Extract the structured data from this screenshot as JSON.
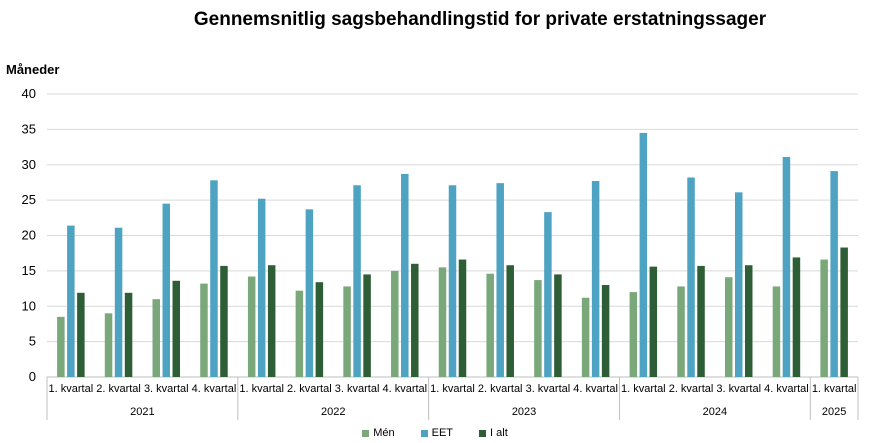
{
  "chart_data": {
    "type": "bar",
    "title": "Gennemsnitlig sagsbehandlingstid for private erstatningssager",
    "ylabel": "Måneder",
    "xlabel": "",
    "ylim": [
      0,
      40
    ],
    "yticks": [
      0,
      5,
      10,
      15,
      20,
      25,
      30,
      35,
      40
    ],
    "grid": true,
    "legend_position": "bottom",
    "categories": [
      "1. kvartal",
      "2. kvartal",
      "3. kvartal",
      "4. kvartal",
      "1. kvartal",
      "2. kvartal",
      "3. kvartal",
      "4. kvartal",
      "1. kvartal",
      "2. kvartal",
      "3. kvartal",
      "4. kvartal",
      "1. kvartal",
      "2. kvartal",
      "3. kvartal",
      "4. kvartal",
      "1. kvartal"
    ],
    "groups": [
      {
        "label": "2021",
        "count": 4
      },
      {
        "label": "2022",
        "count": 4
      },
      {
        "label": "2023",
        "count": 4
      },
      {
        "label": "2024",
        "count": 4
      },
      {
        "label": "2025",
        "count": 1
      }
    ],
    "series": [
      {
        "name": "Mén",
        "color": "#7aa87a",
        "values": [
          8.5,
          9.0,
          11.0,
          13.2,
          14.2,
          12.2,
          12.8,
          15.0,
          15.5,
          14.6,
          13.7,
          11.2,
          12.0,
          12.8,
          14.1,
          12.8,
          16.6
        ]
      },
      {
        "name": "EET",
        "color": "#4fa3c2",
        "values": [
          21.4,
          21.1,
          24.5,
          27.8,
          25.2,
          23.7,
          27.1,
          28.7,
          27.1,
          27.4,
          23.3,
          27.7,
          34.5,
          28.2,
          26.1,
          31.1,
          29.1
        ]
      },
      {
        "name": "I alt",
        "color": "#2e5e35",
        "values": [
          11.9,
          11.9,
          13.6,
          15.7,
          15.8,
          13.4,
          14.5,
          16.0,
          16.6,
          15.8,
          14.5,
          13.0,
          15.6,
          15.7,
          15.8,
          16.9,
          18.3
        ]
      }
    ]
  }
}
